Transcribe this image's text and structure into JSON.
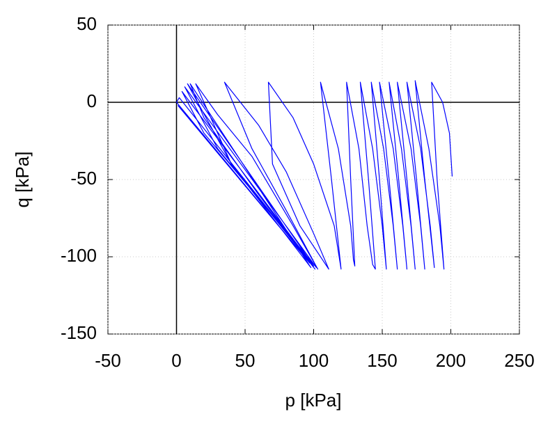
{
  "chart_data": {
    "type": "line",
    "xlabel": "p [kPa]",
    "ylabel": "q [kPa]",
    "color": "#0000ff",
    "xlim": [
      -50,
      250
    ],
    "ylim": [
      -150,
      50
    ],
    "xticks": [
      -50,
      0,
      50,
      100,
      150,
      200,
      250
    ],
    "yticks": [
      -150,
      -100,
      -50,
      0,
      50
    ],
    "grid": true,
    "zero_axes": true,
    "x": [
      201,
      199,
      194,
      186,
      190,
      195,
      192,
      184,
      174,
      181,
      188,
      185,
      178,
      168,
      175,
      181,
      178,
      171,
      161,
      168,
      174,
      171,
      164,
      155,
      162,
      168,
      165,
      158,
      148,
      155,
      161,
      158,
      151,
      142,
      148,
      153,
      150,
      143,
      134,
      140,
      145,
      143,
      139,
      133,
      124,
      127,
      130,
      129,
      127,
      118,
      105,
      113,
      120,
      115,
      100,
      85,
      67,
      70,
      75,
      90,
      111,
      100,
      80,
      60,
      35,
      55,
      80,
      103,
      85,
      55,
      30,
      14,
      40,
      101,
      60,
      20,
      10,
      98,
      40,
      8,
      100,
      30,
      6,
      102,
      20,
      4,
      99,
      2,
      0,
      97,
      1
    ],
    "values": [
      -48,
      -20,
      0,
      13,
      -50,
      -108,
      -80,
      -30,
      14,
      -50,
      -107,
      -80,
      -30,
      13,
      -50,
      -108,
      -80,
      -30,
      13,
      -50,
      -108,
      -80,
      -30,
      13,
      -50,
      -108,
      -80,
      -30,
      13,
      -50,
      -108,
      -80,
      -30,
      13,
      -50,
      -108,
      -80,
      -30,
      13,
      -50,
      -108,
      -105,
      -80,
      -30,
      13,
      -50,
      -106,
      -102,
      -80,
      -30,
      13,
      -50,
      -108,
      -80,
      -40,
      -10,
      13,
      -40,
      -50,
      -80,
      -108,
      -85,
      -45,
      -15,
      13,
      -30,
      -70,
      -108,
      -80,
      -35,
      -8,
      12,
      -40,
      -108,
      -60,
      -10,
      12,
      -107,
      -40,
      12,
      -106,
      -30,
      10,
      -107,
      -20,
      7,
      -105,
      3,
      0,
      -104,
      -2
    ]
  }
}
